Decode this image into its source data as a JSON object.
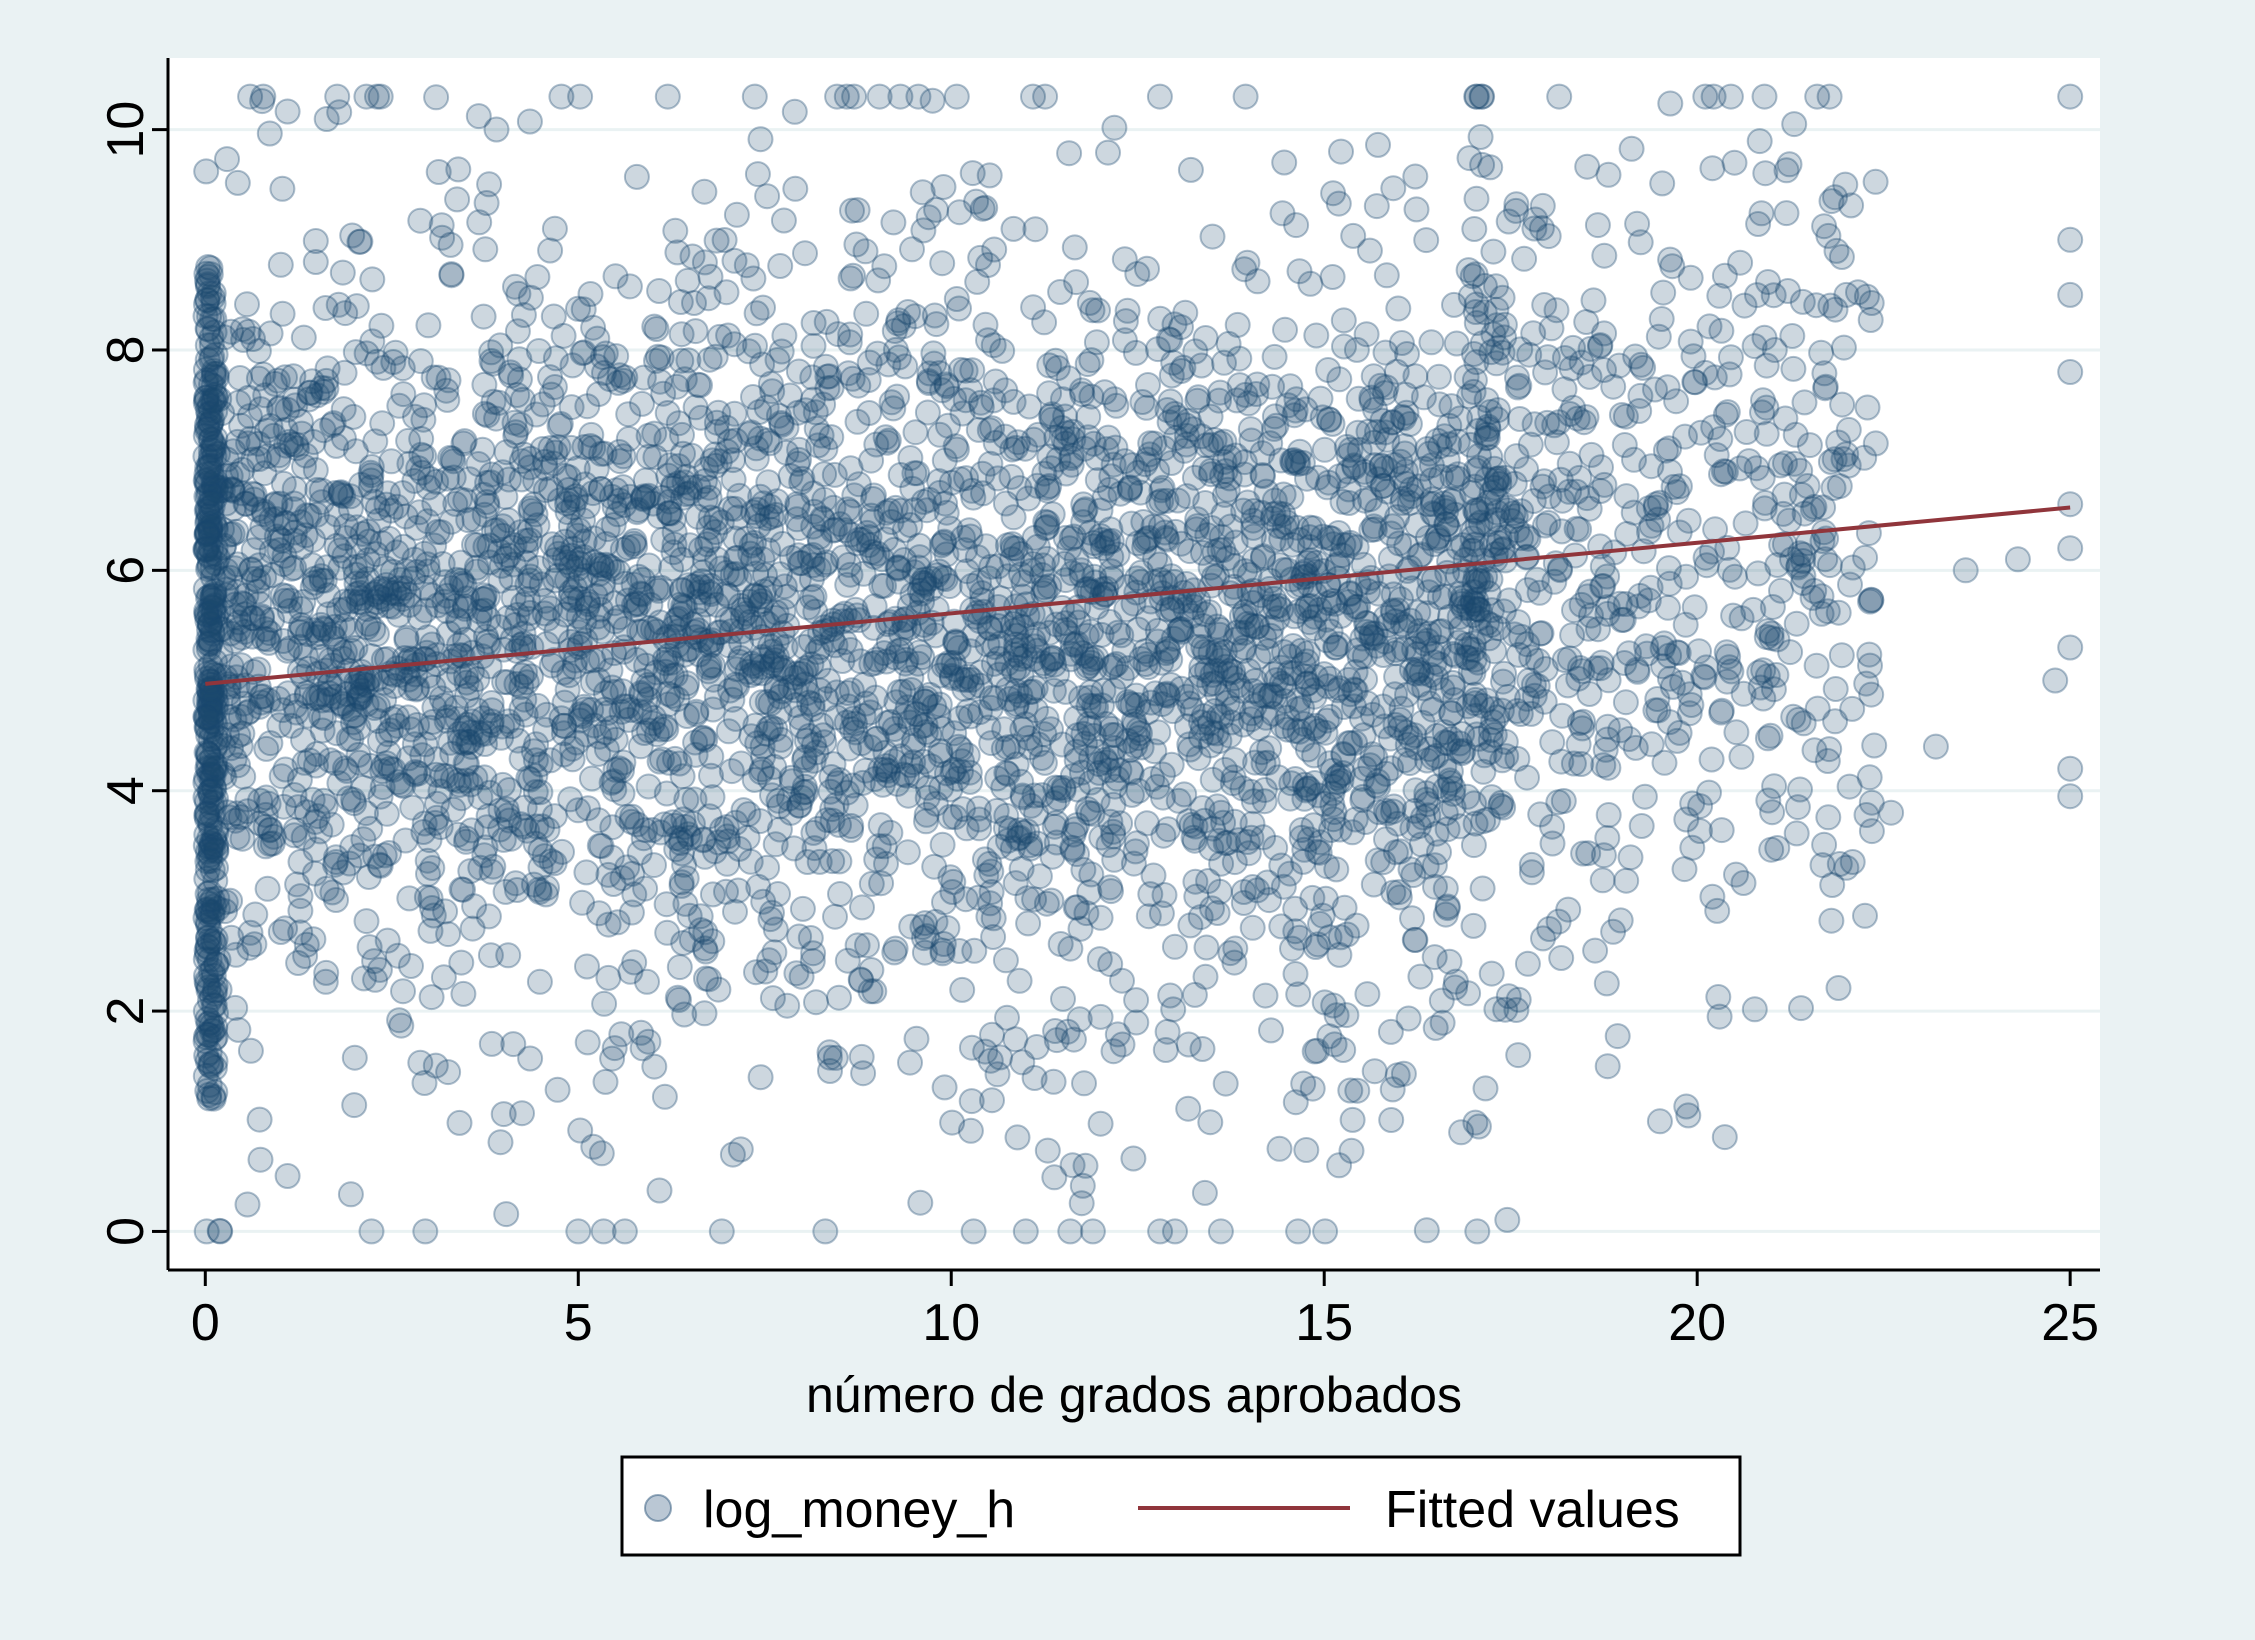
{
  "chart_data": {
    "type": "scatter",
    "xlabel": "número de grados aprobados",
    "ylabel": "",
    "xlim": [
      -0.5,
      25.4
    ],
    "ylim": [
      -0.35,
      10.65
    ],
    "xticks": [
      "0",
      "5",
      "10",
      "15",
      "20",
      "25"
    ],
    "yticks": [
      "0",
      "2",
      "4",
      "6",
      "8",
      "10"
    ],
    "grid": "horizontal",
    "legend_position": "bottom",
    "colors": {
      "background": "#eaf2f3",
      "plot": "#ffffff",
      "marker": "#1a476f",
      "fit": "#90353b",
      "grid": "#eaf2f3"
    },
    "series": [
      {
        "name": "log_money_h",
        "kind": "scatter",
        "description_density": {
          "x_range": [
            0,
            25
          ],
          "y_range": [
            0,
            10.3
          ],
          "dense_x_range": [
            0,
            17
          ],
          "dense_y_range": [
            1.5,
            9
          ],
          "sparse_outliers": [
            [
              25,
              10.3
            ],
            [
              25,
              9.0
            ],
            [
              25,
              8.5
            ],
            [
              25,
              7.8
            ],
            [
              25,
              6.6
            ],
            [
              25,
              6.2
            ],
            [
              25,
              5.3
            ],
            [
              25,
              4.2
            ],
            [
              25,
              3.95
            ],
            [
              24.8,
              5.0
            ],
            [
              24.3,
              6.1
            ],
            [
              23.6,
              6.0
            ],
            [
              23.2,
              4.4
            ],
            [
              22.6,
              3.8
            ],
            [
              22.0,
              3.3
            ],
            [
              19.5,
              1.0
            ],
            [
              20.3,
              1.95
            ],
            [
              18.8,
              1.5
            ],
            [
              17.6,
              1.6
            ],
            [
              15.2,
              0.6
            ],
            [
              14.4,
              0.75
            ],
            [
              13.4,
              0.35
            ],
            [
              12.8,
              0.0
            ],
            [
              13.0,
              0.0
            ],
            [
              11.0,
              0.0
            ],
            [
              10.3,
              0.0
            ],
            [
              5.0,
              0.0
            ],
            [
              0.2,
              0.0
            ],
            [
              6.2,
              10.3
            ],
            [
              0.6,
              10.3
            ],
            [
              21.3,
              10.05
            ],
            [
              22.0,
              8.5
            ],
            [
              20.5,
              9.7
            ]
          ]
        }
      },
      {
        "name": "Fitted values",
        "kind": "line",
        "x": [
          0,
          25
        ],
        "y": [
          4.97,
          6.57
        ]
      }
    ]
  }
}
